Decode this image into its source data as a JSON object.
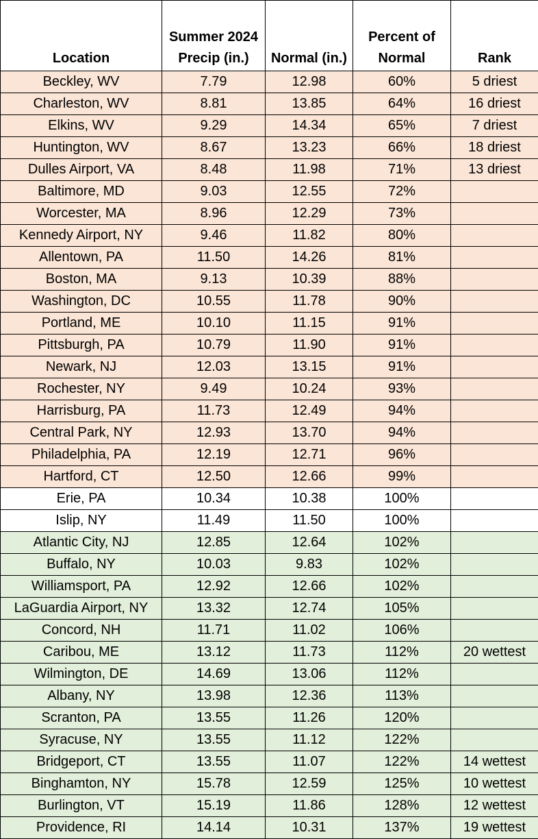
{
  "headers": {
    "location": "Location",
    "precip_line1": "Summer 2024",
    "precip_line2": "Precip (in.)",
    "normal": "Normal (in.)",
    "pct_line1": "Percent of",
    "pct_line2": "Normal",
    "rank": "Rank"
  },
  "colors": {
    "below_normal": "#fbe5d6",
    "near_normal": "#ffffff",
    "above_normal": "#e2efda",
    "border": "#000000"
  },
  "rows": [
    {
      "location": "Beckley, WV",
      "precip": "7.79",
      "normal": "12.98",
      "percent": "60%",
      "rank": "5 driest",
      "category": "dry"
    },
    {
      "location": "Charleston, WV",
      "precip": "8.81",
      "normal": "13.85",
      "percent": "64%",
      "rank": "16 driest",
      "category": "dry"
    },
    {
      "location": "Elkins, WV",
      "precip": "9.29",
      "normal": "14.34",
      "percent": "65%",
      "rank": "7 driest",
      "category": "dry"
    },
    {
      "location": "Huntington, WV",
      "precip": "8.67",
      "normal": "13.23",
      "percent": "66%",
      "rank": "18 driest",
      "category": "dry"
    },
    {
      "location": "Dulles Airport, VA",
      "precip": "8.48",
      "normal": "11.98",
      "percent": "71%",
      "rank": "13 driest",
      "category": "dry"
    },
    {
      "location": "Baltimore, MD",
      "precip": "9.03",
      "normal": "12.55",
      "percent": "72%",
      "rank": "",
      "category": "dry"
    },
    {
      "location": "Worcester, MA",
      "precip": "8.96",
      "normal": "12.29",
      "percent": "73%",
      "rank": "",
      "category": "dry"
    },
    {
      "location": "Kennedy Airport, NY",
      "precip": "9.46",
      "normal": "11.82",
      "percent": "80%",
      "rank": "",
      "category": "dry"
    },
    {
      "location": "Allentown, PA",
      "precip": "11.50",
      "normal": "14.26",
      "percent": "81%",
      "rank": "",
      "category": "dry"
    },
    {
      "location": "Boston, MA",
      "precip": "9.13",
      "normal": "10.39",
      "percent": "88%",
      "rank": "",
      "category": "dry"
    },
    {
      "location": "Washington, DC",
      "precip": "10.55",
      "normal": "11.78",
      "percent": "90%",
      "rank": "",
      "category": "dry"
    },
    {
      "location": "Portland, ME",
      "precip": "10.10",
      "normal": "11.15",
      "percent": "91%",
      "rank": "",
      "category": "dry"
    },
    {
      "location": "Pittsburgh, PA",
      "precip": "10.79",
      "normal": "11.90",
      "percent": "91%",
      "rank": "",
      "category": "dry"
    },
    {
      "location": "Newark, NJ",
      "precip": "12.03",
      "normal": "13.15",
      "percent": "91%",
      "rank": "",
      "category": "dry"
    },
    {
      "location": "Rochester, NY",
      "precip": "9.49",
      "normal": "10.24",
      "percent": "93%",
      "rank": "",
      "category": "dry"
    },
    {
      "location": "Harrisburg, PA",
      "precip": "11.73",
      "normal": "12.49",
      "percent": "94%",
      "rank": "",
      "category": "dry"
    },
    {
      "location": "Central Park, NY",
      "precip": "12.93",
      "normal": "13.70",
      "percent": "94%",
      "rank": "",
      "category": "dry"
    },
    {
      "location": "Philadelphia, PA",
      "precip": "12.19",
      "normal": "12.71",
      "percent": "96%",
      "rank": "",
      "category": "dry"
    },
    {
      "location": "Hartford, CT",
      "precip": "12.50",
      "normal": "12.66",
      "percent": "99%",
      "rank": "",
      "category": "dry"
    },
    {
      "location": "Erie, PA",
      "precip": "10.34",
      "normal": "10.38",
      "percent": "100%",
      "rank": "",
      "category": "normal"
    },
    {
      "location": "Islip, NY",
      "precip": "11.49",
      "normal": "11.50",
      "percent": "100%",
      "rank": "",
      "category": "normal"
    },
    {
      "location": "Atlantic City, NJ",
      "precip": "12.85",
      "normal": "12.64",
      "percent": "102%",
      "rank": "",
      "category": "wet"
    },
    {
      "location": "Buffalo, NY",
      "precip": "10.03",
      "normal": "9.83",
      "percent": "102%",
      "rank": "",
      "category": "wet"
    },
    {
      "location": "Williamsport, PA",
      "precip": "12.92",
      "normal": "12.66",
      "percent": "102%",
      "rank": "",
      "category": "wet"
    },
    {
      "location": "LaGuardia Airport, NY",
      "precip": "13.32",
      "normal": "12.74",
      "percent": "105%",
      "rank": "",
      "category": "wet"
    },
    {
      "location": "Concord, NH",
      "precip": "11.71",
      "normal": "11.02",
      "percent": "106%",
      "rank": "",
      "category": "wet"
    },
    {
      "location": "Caribou, ME",
      "precip": "13.12",
      "normal": "11.73",
      "percent": "112%",
      "rank": "20 wettest",
      "category": "wet"
    },
    {
      "location": "Wilmington, DE",
      "precip": "14.69",
      "normal": "13.06",
      "percent": "112%",
      "rank": "",
      "category": "wet"
    },
    {
      "location": "Albany, NY",
      "precip": "13.98",
      "normal": "12.36",
      "percent": "113%",
      "rank": "",
      "category": "wet"
    },
    {
      "location": "Scranton, PA",
      "precip": "13.55",
      "normal": "11.26",
      "percent": "120%",
      "rank": "",
      "category": "wet"
    },
    {
      "location": "Syracuse, NY",
      "precip": "13.55",
      "normal": "11.12",
      "percent": "122%",
      "rank": "",
      "category": "wet"
    },
    {
      "location": "Bridgeport, CT",
      "precip": "13.55",
      "normal": "11.07",
      "percent": "122%",
      "rank": "14 wettest",
      "category": "wet"
    },
    {
      "location": "Binghamton, NY",
      "precip": "15.78",
      "normal": "12.59",
      "percent": "125%",
      "rank": "10 wettest",
      "category": "wet"
    },
    {
      "location": "Burlington, VT",
      "precip": "15.19",
      "normal": "11.86",
      "percent": "128%",
      "rank": "12 wettest",
      "category": "wet"
    },
    {
      "location": "Providence, RI",
      "precip": "14.14",
      "normal": "10.31",
      "percent": "137%",
      "rank": "19 wettest",
      "category": "wet"
    }
  ]
}
